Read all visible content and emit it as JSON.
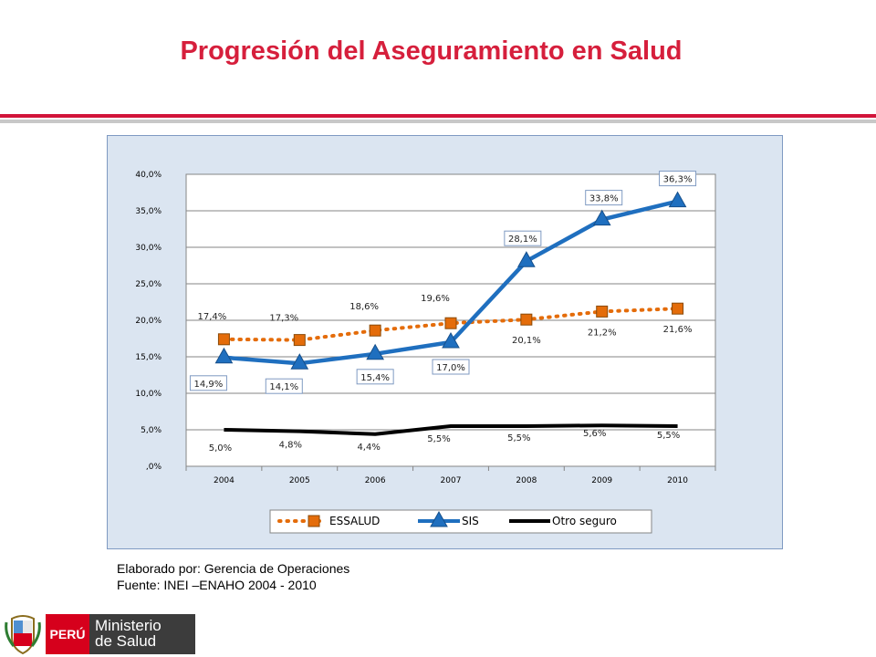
{
  "slide": {
    "title": "Progresión del Aseguramiento en Salud",
    "credit_line1": "Elaborado por: Gerencia de Operaciones",
    "credit_line2": "Fuente: INEI –ENAHO 2004 - 2010"
  },
  "logo": {
    "country": "PERÚ",
    "ministry_line1": "Ministerio",
    "ministry_line2": "de Salud",
    "colors": {
      "red": "#d6001c",
      "dark": "#3c3c3c"
    }
  },
  "chart_data": {
    "type": "line",
    "title": "",
    "xlabel": "",
    "ylabel": "",
    "categories": [
      "2004",
      "2005",
      "2006",
      "2007",
      "2008",
      "2009",
      "2010"
    ],
    "ylim": [
      0,
      40
    ],
    "yticks": [
      ",0%",
      "5,0%",
      "10,0%",
      "15,0%",
      "20,0%",
      "25,0%",
      "30,0%",
      "35,0%",
      "40,0%"
    ],
    "grid": true,
    "legend_position": "bottom",
    "series": [
      {
        "name": "ESSALUD",
        "values": [
          17.4,
          17.3,
          18.6,
          19.6,
          20.1,
          21.2,
          21.6
        ],
        "labels": [
          "17,4%",
          "17,3%",
          "18,6%",
          "19,6%",
          "20,1%",
          "21,2%",
          "21,6%"
        ],
        "color": "#e46c0a",
        "marker": "square",
        "style": "dotted"
      },
      {
        "name": "SIS",
        "values": [
          14.9,
          14.1,
          15.4,
          17.0,
          28.1,
          33.8,
          36.3
        ],
        "labels": [
          "14,9%",
          "14,1%",
          "15,4%",
          "17,0%",
          "28,1%",
          "33,8%",
          "36,3%"
        ],
        "color": "#1f6fbf",
        "marker": "triangle",
        "style": "solid"
      },
      {
        "name": "Otro seguro",
        "values": [
          5.0,
          4.8,
          4.4,
          5.5,
          5.5,
          5.6,
          5.5
        ],
        "labels": [
          "5,0%",
          "4,8%",
          "4,4%",
          "5,5%",
          "5,5%",
          "5,6%",
          "5,5%"
        ],
        "color": "#000000",
        "marker": "none",
        "style": "solid"
      }
    ]
  }
}
